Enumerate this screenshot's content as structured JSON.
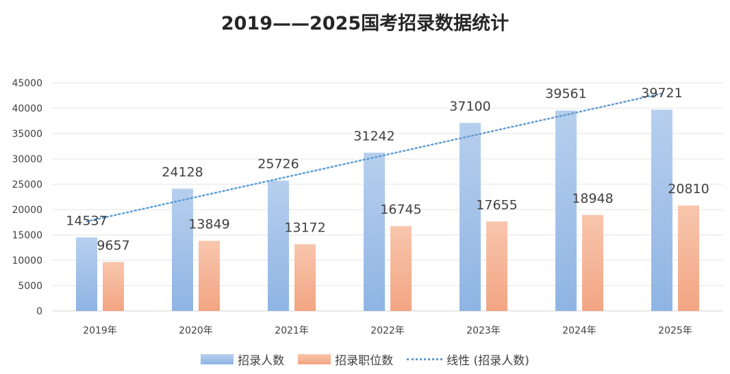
{
  "chart_data": {
    "type": "bar",
    "title": "2019——2025国考招录数据统计",
    "categories": [
      "2019年",
      "2020年",
      "2021年",
      "2022年",
      "2023年",
      "2024年",
      "2025年"
    ],
    "series": [
      {
        "name": "招录人数",
        "values": [
          14537,
          24128,
          25726,
          31242,
          37100,
          39561,
          39721
        ],
        "color_top": "#b7cfee",
        "color_bottom": "#8fb4e3"
      },
      {
        "name": "招录职位数",
        "values": [
          9657,
          13849,
          13172,
          16745,
          17655,
          18948,
          20810
        ],
        "color_top": "#f8c6ad",
        "color_bottom": "#f2a583"
      }
    ],
    "trendline": {
      "name": "线性 (招录人数)",
      "of_series": "招录人数",
      "type": "linear",
      "color": "#5b9bd5"
    },
    "ylim": [
      0,
      45000
    ],
    "yticks": [
      0,
      5000,
      10000,
      15000,
      20000,
      25000,
      30000,
      35000,
      40000,
      45000
    ],
    "grid": true,
    "legend_position": "bottom",
    "xlabel": "",
    "ylabel": ""
  }
}
